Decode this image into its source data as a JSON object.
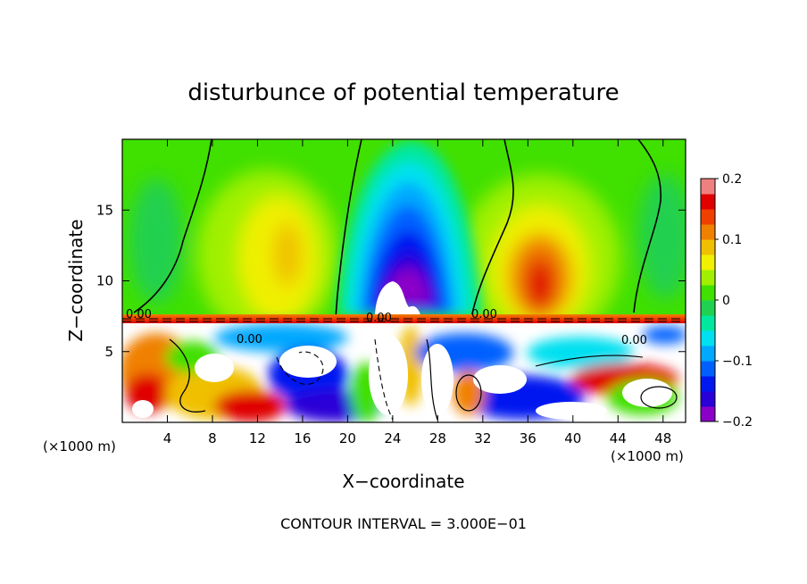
{
  "chart_data": {
    "type": "heatmap",
    "title": "disturbunce of potential temperature",
    "xlabel": "X−coordinate",
    "ylabel": "Z−coordinate",
    "x_unit_left": "(×1000 m)",
    "x_unit_right": "(×1000 m)",
    "footer": "CONTOUR INTERVAL = 3.000E−01",
    "xlim": [
      0,
      50
    ],
    "ylim": [
      0,
      20
    ],
    "x_ticks": [
      4,
      8,
      12,
      16,
      20,
      24,
      28,
      32,
      36,
      40,
      44,
      48
    ],
    "x_tick_labels": [
      "4",
      "8",
      "12",
      "16",
      "20",
      "24",
      "28",
      "32",
      "36",
      "40",
      "44",
      "48"
    ],
    "y_ticks": [
      5,
      10,
      15
    ],
    "y_tick_labels": [
      "5",
      "10",
      "15"
    ],
    "colorbar": {
      "range": [
        -0.2,
        0.2
      ],
      "tick_values": [
        0.2,
        0.1,
        0,
        -0.1,
        -0.2
      ],
      "tick_labels": [
        "0.2",
        "0.1",
        "0",
        "−0.1",
        "−0.2"
      ],
      "colors": [
        "#8a00c8",
        "#2a00d8",
        "#0018f0",
        "#0060ff",
        "#00a8ff",
        "#00e0f0",
        "#00e8a0",
        "#20d050",
        "#40e000",
        "#a0f000",
        "#f0f000",
        "#f0c000",
        "#f08000",
        "#f04000",
        "#e00000",
        "#f08080"
      ]
    },
    "contour_labels": [
      "0.00",
      "0.00",
      "0.00",
      "0.00",
      "0.00"
    ],
    "colors": {
      "field_background": "#40e000",
      "saturated_region": "#ffffff"
    }
  }
}
